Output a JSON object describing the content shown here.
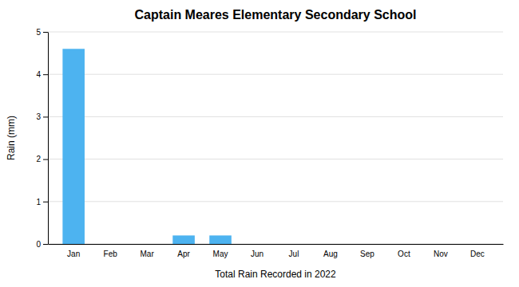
{
  "chart_data": {
    "type": "bar",
    "title": "Captain Meares Elementary Secondary School",
    "xlabel": "Total Rain Recorded in 2022",
    "ylabel": "Rain (mm)",
    "categories": [
      "Jan",
      "Feb",
      "Mar",
      "Apr",
      "May",
      "Jun",
      "Jul",
      "Aug",
      "Sep",
      "Oct",
      "Nov",
      "Dec"
    ],
    "values": [
      4.6,
      0,
      0,
      0.2,
      0.2,
      0,
      0,
      0,
      0,
      0,
      0,
      0
    ],
    "color": "#4db3f0",
    "ylim": [
      0,
      5
    ],
    "yticks": [
      0,
      1,
      2,
      3,
      4,
      5
    ],
    "grid": true
  }
}
